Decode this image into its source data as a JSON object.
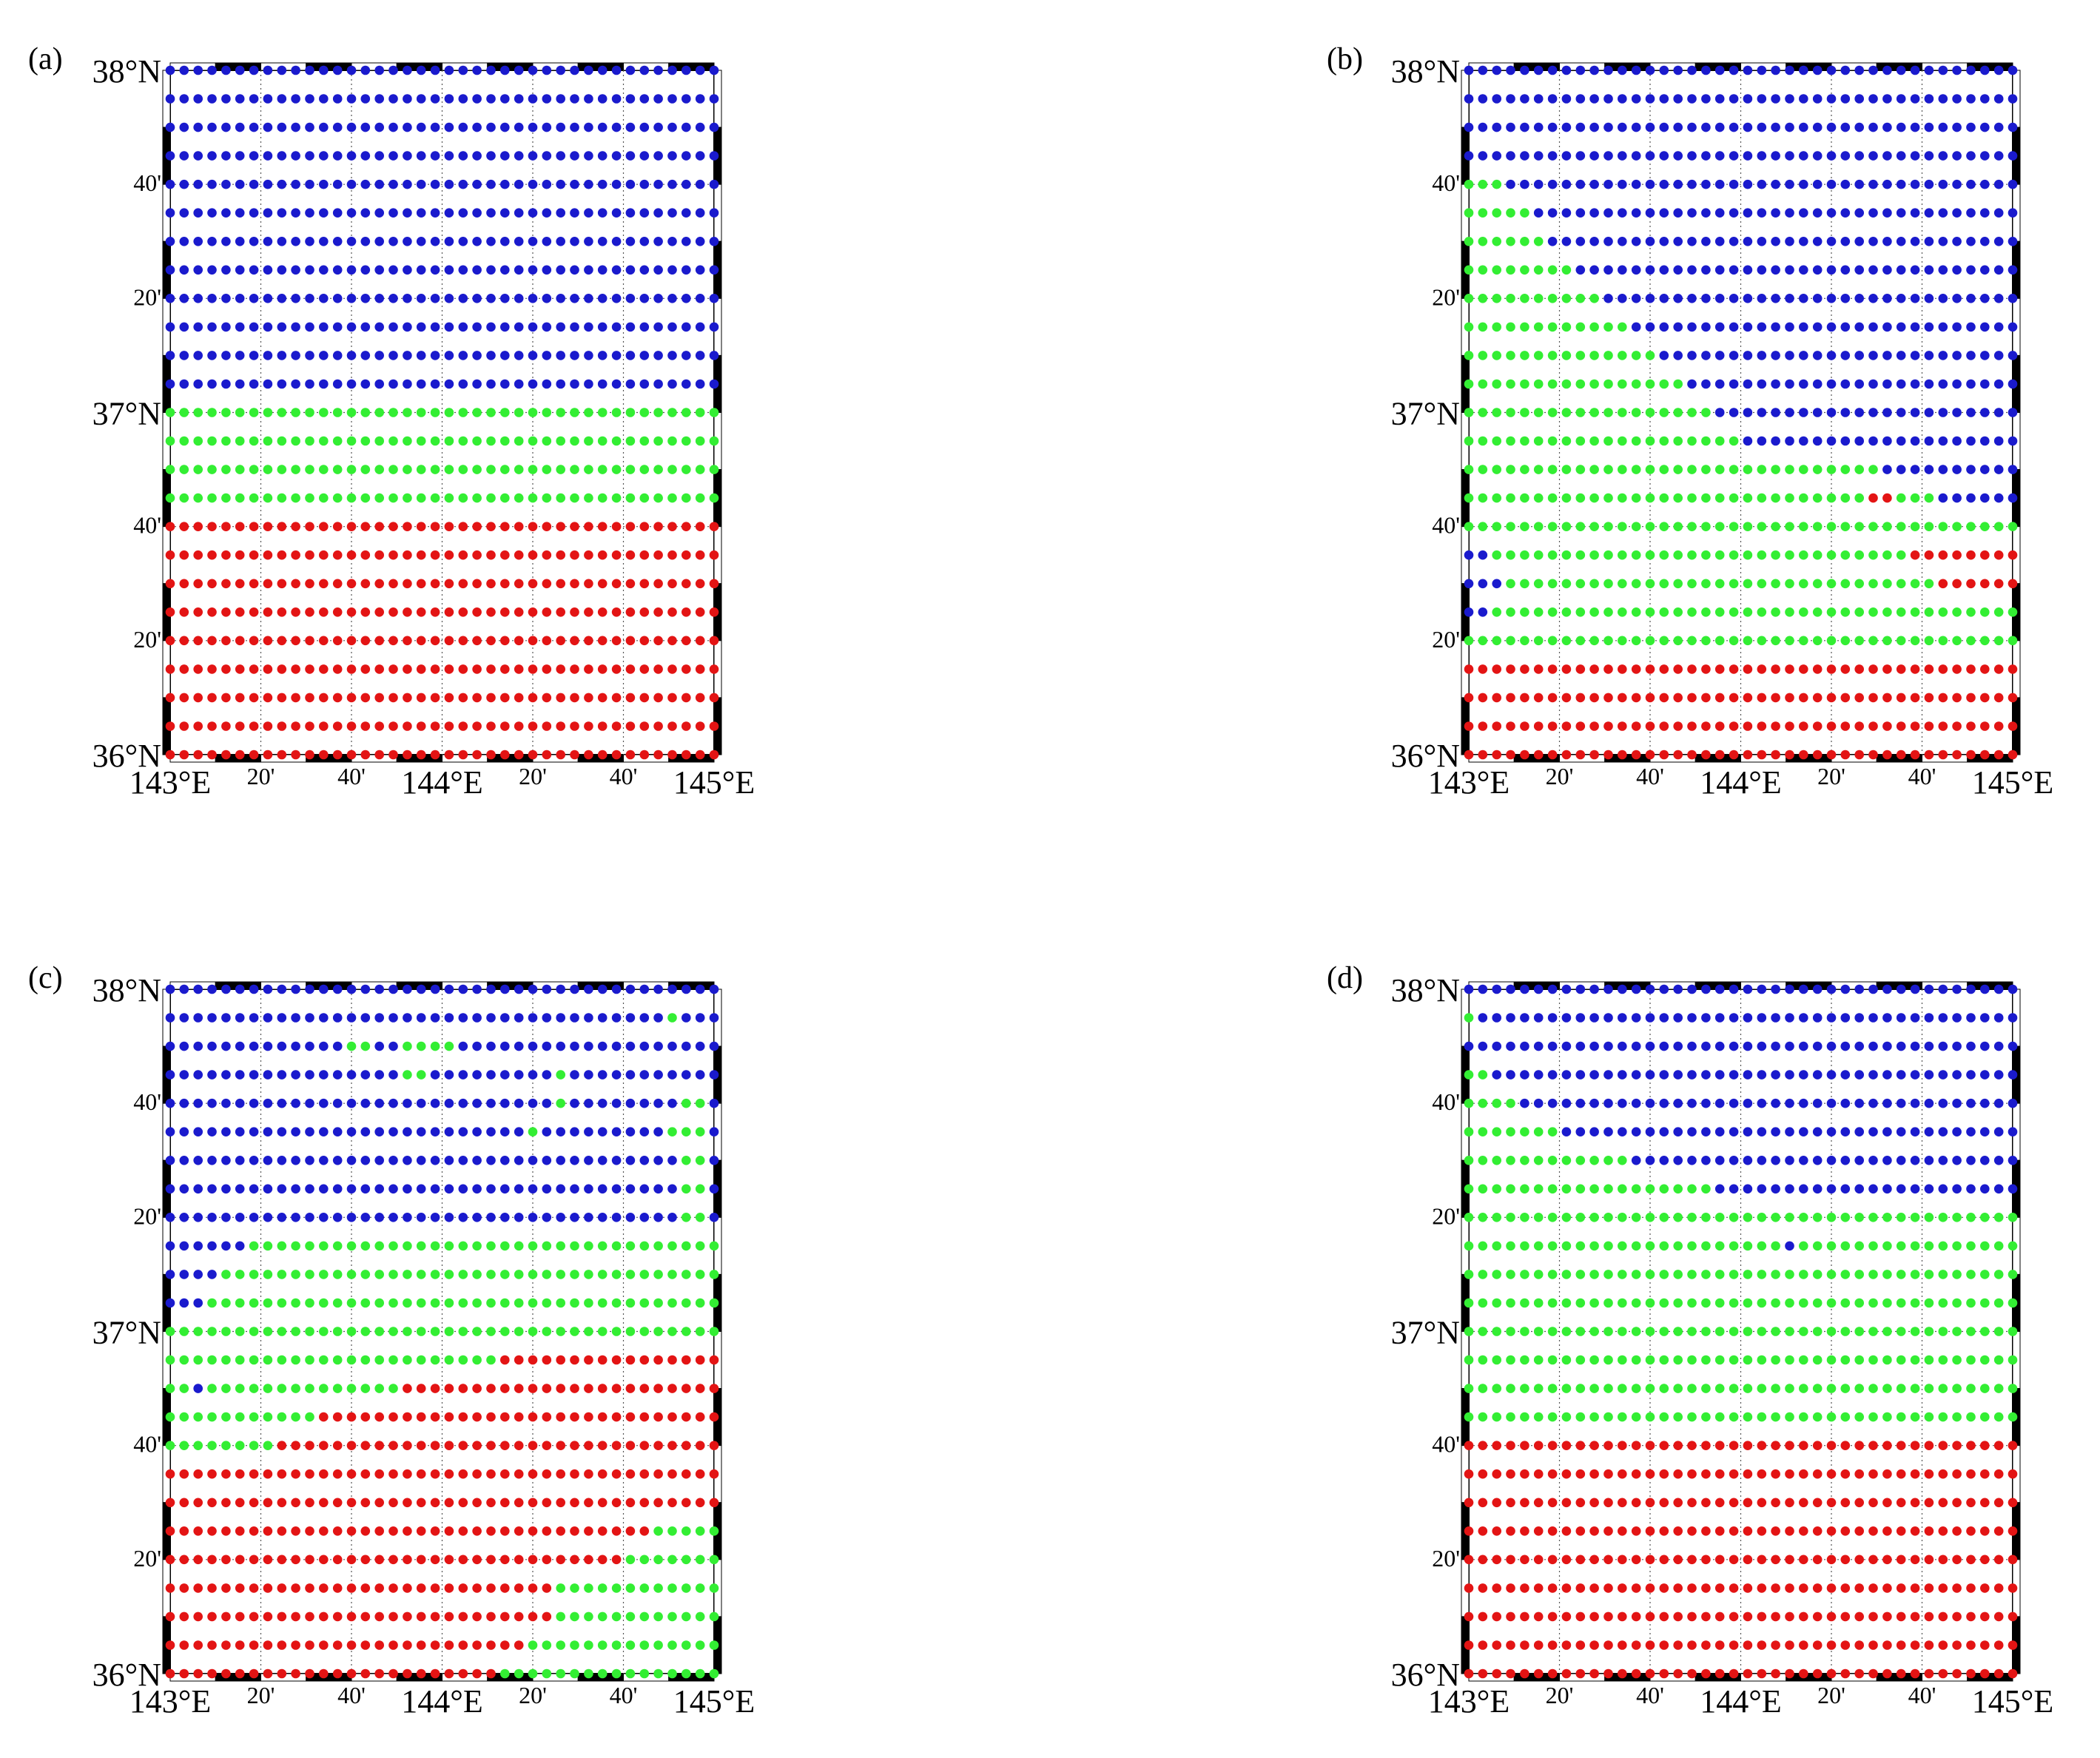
{
  "figure": {
    "panels": [
      {
        "id": "a",
        "label": "(a)",
        "rows": [
          "BBBBBBBBBBBBBBBBBBBBBBBBBBBBBBBBBBBBBBBB",
          "BBBBBBBBBBBBBBBBBBBBBBBBBBBBBBBBBBBBBBBB",
          "BBBBBBBBBBBBBBBBBBBBBBBBBBBBBBBBBBBBBBBB",
          "BBBBBBBBBBBBBBBBBBBBBBBBBBBBBBBBBBBBBBBB",
          "BBBBBBBBBBBBBBBBBBBBBBBBBBBBBBBBBBBBBBBB",
          "BBBBBBBBBBBBBBBBBBBBBBBBBBBBBBBBBBBBBBBB",
          "BBBBBBBBBBBBBBBBBBBBBBBBBBBBBBBBBBBBBBBB",
          "BBBBBBBBBBBBBBBBBBBBBBBBBBBBBBBBBBBBBBBB",
          "BBBBBBBBBBBBBBBBBBBBBBBBBBBBBBBBBBBBBBBB",
          "BBBBBBBBBBBBBBBBBBBBBBBBBBBBBBBBBBBBBBBB",
          "BBBBBBBBBBBBBBBBBBBBBBBBBBBBBBBBBBBBBBBB",
          "BBBBBBBBBBBBBBBBBBBBBBBBBBBBBBBBBBBBBBBB",
          "GGGGGGGGGGGGGGGGGGGGGGGGGGGGGGGGGGGGGGGG",
          "GGGGGGGGGGGGGGGGGGGGGGGGGGGGGGGGGGGGGGGG",
          "GGGGGGGGGGGGGGGGGGGGGGGGGGGGGGGGGGGGGGGG",
          "GGGGGGGGGGGGGGGGGGGGGGGGGGGGGGGGGGGGGGGG",
          "RRRRRRRRRRRRRRRRRRRRRRRRRRRRRRRRRRRRRRRR",
          "RRRRRRRRRRRRRRRRRRRRRRRRRRRRRRRRRRRRRRRR",
          "RRRRRRRRRRRRRRRRRRRRRRRRRRRRRRRRRRRRRRRR",
          "RRRRRRRRRRRRRRRRRRRRRRRRRRRRRRRRRRRRRRRR",
          "RRRRRRRRRRRRRRRRRRRRRRRRRRRRRRRRRRRRRRRR",
          "RRRRRRRRRRRRRRRRRRRRRRRRRRRRRRRRRRRRRRRR",
          "RRRRRRRRRRRRRRRRRRRRRRRRRRRRRRRRRRRRRRRR",
          "RRRRRRRRRRRRRRRRRRRRRRRRRRRRRRRRRRRRRRRR",
          "RRRRRRRRRRRRRRRRRRRRRRRRRRRRRRRRRRRRRRRR"
        ]
      },
      {
        "id": "b",
        "label": "(b)",
        "rows": [
          "BBBBBBBBBBBBBBBBBBBBBBBBBBBBBBBBBBBBBBBB",
          "BBBBBBBBBBBBBBBBBBBBBBBBBBBBBBBBBBBBBBBB",
          "BBBBBBBBBBBBBBBBBBBBBBBBBBBBBBBBBBBBBBBB",
          "BBBBBBBBBBBBBBBBBBBBBBBBBBBBBBBBBBBBBBBB",
          "GGGBBBBBBBBBBBBBBBBBBBBBBBBBBBBBBBBBBBBB",
          "GGGGGBBBBBBBBBBBBBBBBBBBBBBBBBBBBBBBBBBB",
          "GGGGGGBBBBBBBBBBBBBBBBBBBBBBBBBBBBBBBBBB",
          "GGGGGGGGBBBBBBBBBBBBBBBBBBBBBBBBBBBBBBBB",
          "GGGGGGGGGGBBBBBBBBBBBBBBBBBBBBBBBBBBBBBB",
          "GGGGGGGGGGGGBBBBBBBBBBBBBBBBBBBBBBBBBBBB",
          "GGGGGGGGGGGGGGBBBBBBBBBBBBBBBBBBBBBBBBBB",
          "GGGGGGGGGGGGGGGGBBBBBBBBBBBBBBBBBBBBBBBB",
          "GGGGGGGGGGGGGGGGGGBBBBBBBBBBBBBBBBBBBBBB",
          "GGGGGGGGGGGGGGGGGGGGBBBBBBBBBBBBBBBBBBBB",
          "GGGGGGGGGGGGGGGGGGGGGGGGGGGGGGBBBBBBBBBB",
          "GGGGGGGGGGGGGGGGGGGGGGGGGGGGGRRGGGBBBBBB",
          "GGGGGGGGGGGGGGGGGGGGGGGGGGGGGGGGGGGGGGGG",
          "BBGGGGGGGGGGGGGGGGGGGGGGGGGGGGGGRRRRRRRR",
          "BBBGGGGGGGGGGGGGGGGGGGGGGGGGGGGGGGRRRRRR",
          "BBGGGGGGGGGGGGGGGGGGGGGGGGGGGGGGGGGGGGGG",
          "GGGGGGGGGGGGGGGGGGGGGGGGGGGGGGGGGGGGGGGG",
          "RRRRRRRRRRRRRRRRRRRRRRRRRRRRRRRRRRRRRRRR",
          "RRRRRRRRRRRRRRRRRRRRRRRRRRRRRRRRRRRRRRRR",
          "RRRRRRRRRRRRRRRRRRRRRRRRRRRRRRRRRRRRRRRR",
          "RRRRRRRRRRRRRRRRRRRRRRRRRRRRRRRRRRRRRRRR"
        ]
      },
      {
        "id": "c",
        "label": "(c)",
        "rows": [
          "BBBBBBBBBBBBBBBBBBBBBBBBBBBBBBBBBBBBBBBB",
          "BBBBBBBBBBBBBBBBBBBBBBBBBBBBBBBBBBBBGBBB",
          "BBBBBBBBBBBBBGGBBGGGGBBBBBBBBBBBBBBBBBBB",
          "BBBBBBBBBBBBBBBBBGGBBBBBBBBBGBBBBBBBBBBB",
          "BBBBBBBBBBBBBBBBBBBBBBBBBBBBGBBBBBBBBGGB",
          "BBBBBBBBBBBBBBBBBBBBBBBBBBGBBBBBBBBBGGGB",
          "BBBBBBBBBBBBBBBBBBBBBBBBBBBBBBBBBBBBBGGB",
          "BBBBBBBBBBBBBBBBBBBBBBBBBBBBBBBBBBBBBGGB",
          "BBBBBBBBBBBBBBBBBBBBBBBBBBBBBBBBBBBBBGGB",
          "BBBBBBGGGGGGGGGGGGGGGGGGGGGGGGGGGGGGGGGG",
          "BBBBGGGGGGGGGGGGGGGGGGGGGGGGGGGGGGGGGGGG",
          "BBBGGGGGGGGGGGGGGGGGGGGGGGGGGGGGGGGGGGGG",
          "GGGGGGGGGGGGGGGGGGGGGGGGGGGGGGGGGGGGGGGG",
          "GGGGGGGGGGGGGGGGGGGGGGGGRRRRRRRRRRRRRRRR",
          "GGBGGGGGGGGGGGGGGRRRRRRRRRRRRRRRRRRRRRRR",
          "GGGGGGGGGGGRRRRRRRRRRRRRRRRRRRRRRRRRRRRR",
          "GGGGGGGGRRRRRRRRRRRRRRRRRRRRRRRRRRRRRRRR",
          "RRRRRRRRRRRRRRRRRRRRRRRRRRRRRRRRRRRRRRRR",
          "RRRRRRRRRRRRRRRRRRRRRRRRRRRRRRRRRRRRRRRR",
          "RRRRRRRRRRRRRRRRRRRRRRRRRRRRRRRRRRRGGGGG",
          "RRRRRRRRRRRRRRRRRRRRRRRRRRRRRRRRRGGGGGGG",
          "RRRRRRRRRRRRRRRRRRRRRRRRRRRRGGGGGGGGGGGG",
          "RRRRRRRRRRRRRRRRRRRRRRRRRRRRGGGGGGGGGGGG",
          "RRRRRRRRRRRRRRRRRRRRRRRRRRGGGGGGGGGGGGGG",
          "RRRRRRRRRRRRRRRRRRRRRRRRGGGGGGGGGGGGGGGG"
        ]
      },
      {
        "id": "d",
        "label": "(d)",
        "rows": [
          "BBBBBBBBBBBBBBBBBBBBBBBBBBBBBBBBBBBBBBBB",
          "GBBBBBBBBBBBBBBBBBBBBBBBBBBBBBBBBBBBBBBB",
          "BBBBBBBBBBBBBBBBBBBBBBBBBBBBBBBBBBBBBBBB",
          "GGBBBBBBBBBBBBBBBBBBBBBBBBBBBBBBBBBBBBBB",
          "GGGGBBBBBBBBBBBBBBBBBBBBBBBBBBBBBBBBBBBB",
          "GGGGGGGBBBBBBBBBBBBBBBBBBBBBBBBBBBBBBBBB",
          "GGGGGGGGGGGGBBBBBBBBBBBBBBBBBBBBBBBBBBBB",
          "GGGGGGGGGGGGGGGGGGBBBBBBBBBBBBBBBBBBBBBB",
          "GGGGGGGGGGGGGGGGGGGGGGGGGGGGGGGGGGGGGGGG",
          "GGGGGGGGGGGGGGGGGGGGGGGBGGGGGGGGGGGGGGGG",
          "GGGGGGGGGGGGGGGGGGGGGGGGGGGGGGGGGGGGGGGG",
          "GGGGGGGGGGGGGGGGGGGGGGGGGGGGGGGGGGGGGGGG",
          "GGGGGGGGGGGGGGGGGGGGGGGGGGGGGGGGGGGGGGGG",
          "GGGGGGGGGGGGGGGGGGGGGGGGGGGGGGGGGGGGGGGG",
          "GGGGGGGGGGGGGGGGGGGGGGGGGGGGGGGGGGGGGGGG",
          "GGGGGGGGGGGGGGGGGGGGGGGGGGGGGGGGGGGGGGGG",
          "RRRRRRRRRRRRRRRRRRRRRRRRRRRRRRRRRRRRRRRR",
          "RRRRRRRRRRRRRRRRRRRRRRRRRRRRRRRRRRRRRRRR",
          "RRRRRRRRRRRRRRRRRRRRRRRRRRRRRRRRRRRRRRRR",
          "RRRRRRRRRRRRRRRRRRRRRRRRRRRRRRRRRRRRRRRR",
          "RRRRRRRRRRRRRRRRRRRRRRRRRRRRRRRRRRRRRRRR",
          "RRRRRRRRRRRRRRRRRRRRRRRRRRRRRRRRRRRRRRRR",
          "RRRRRRRRRRRRRRRRRRRRRRRRRRRRRRRRRRRRRRRR",
          "RRRRRRRRRRRRRRRRRRRRRRRRRRRRRRRRRRRRRRRR",
          "RRRRRRRRRRRRRRRRRRRRRRRRRRRRRRRRRRRRRRRR"
        ]
      }
    ],
    "colors": {
      "B": "#1a1acd",
      "G": "#33ee33",
      "R": "#e31414"
    },
    "lat_ticks": [
      "38°N",
      "40'",
      "20'",
      "37°N",
      "40'",
      "20'",
      "36°N"
    ],
    "lon_ticks": [
      "143°E",
      "20'",
      "40'",
      "144°E",
      "20'",
      "40'",
      "145°E"
    ],
    "lon_major": [
      true,
      false,
      false,
      true,
      false,
      false,
      true
    ],
    "lat_major": [
      true,
      false,
      false,
      true,
      false,
      false,
      true
    ]
  }
}
